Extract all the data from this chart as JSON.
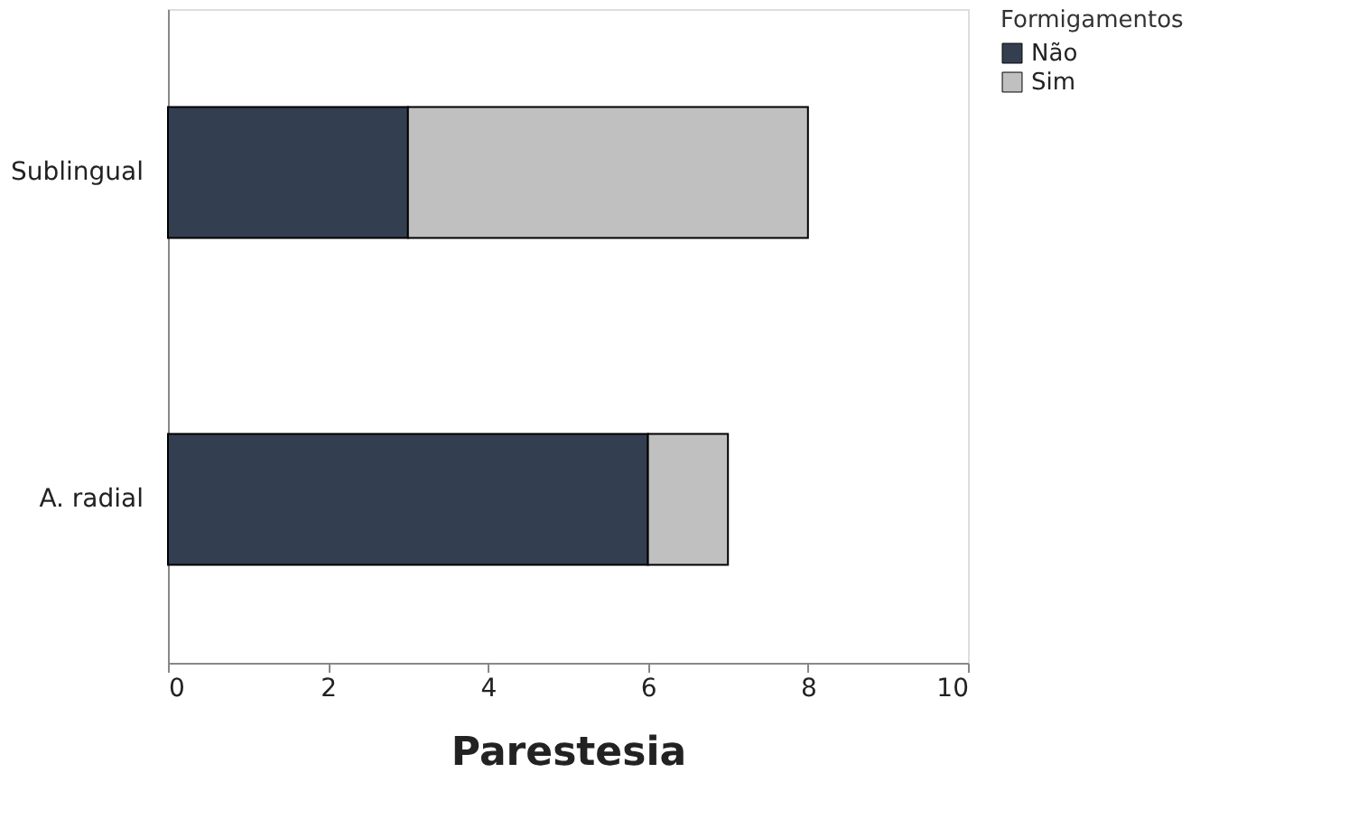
{
  "chart_data": {
    "type": "bar",
    "orientation": "horizontal",
    "stacked": true,
    "xlabel": "Parestesia",
    "legend_title": "Formigamentos",
    "legend": "right",
    "categories": [
      "Sublingual",
      "A. radial"
    ],
    "series": [
      {
        "name": "Não",
        "color": "#333f50",
        "values": [
          3,
          6
        ]
      },
      {
        "name": "Sim",
        "color": "#c0c0c0",
        "values": [
          5,
          1
        ]
      }
    ],
    "xlim": [
      0,
      10
    ],
    "xticks": [
      0,
      2,
      4,
      6,
      8,
      10
    ],
    "grid": false
  }
}
